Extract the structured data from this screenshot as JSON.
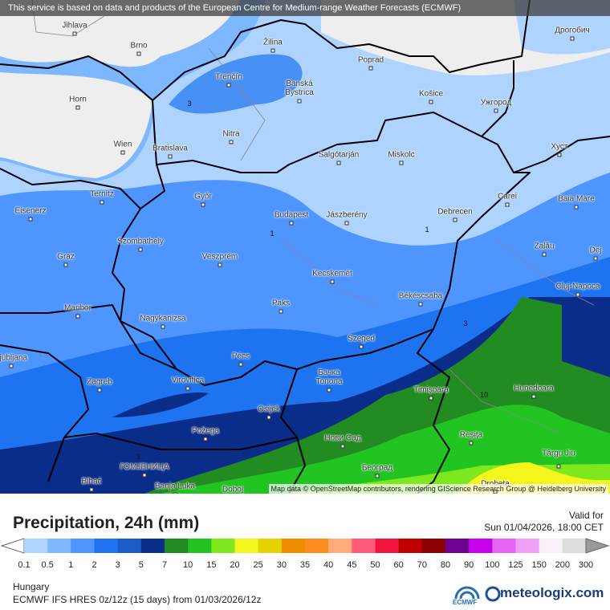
{
  "header": {
    "notice": "This service is based on data and products of the European Centre for Medium-range Weather Forecasts (ECMWF)"
  },
  "map": {
    "cities": [
      "Jihlava",
      "Brno",
      "Žilina",
      "Poprad",
      "Дрогобич",
      "Trenčín",
      "Banská Bystrica",
      "Horn",
      "Košice",
      "Ужгород",
      "Nitra",
      "Wien",
      "Bratislava",
      "Salgótarján",
      "Miskolc",
      "Хуст",
      "Ternitz",
      "Győr",
      "Carei",
      "Baia Mare",
      "Eisenerz",
      "Budapest",
      "Jászberény",
      "Debrecen",
      "Szombathely",
      "Zalău",
      "Graz",
      "Veszprém",
      "Dej",
      "Kecskemét",
      "Cluj-Napoca",
      "Maribor",
      "Paks",
      "Békéscsaba",
      "Nagykanizsa",
      "Szeged",
      "Pécs",
      "Ljubljana",
      "Zagreb",
      "Virovitica",
      "Бачка Топола",
      "Timișoara",
      "Hunedoara",
      "Osijek",
      "Požega",
      "Нови Сад",
      "Reșița",
      "Târgu Jiu",
      "ГОМЈЕНИЦА",
      "Bihać",
      "Banja Luka",
      "Doboj",
      "Београд",
      "Drobeta"
    ],
    "contour_labels": [
      "3",
      "1",
      "1",
      "3",
      "10",
      "3"
    ],
    "attribution": "Map data © OpenStreetMap contributors, rendering GIScience Research Group @ Heidelberg University"
  },
  "legend": {
    "title": "Precipitation, 24h (mm)",
    "valid_label": "Valid for",
    "valid_time": "Sun 01/04/2026, 18:00 CET",
    "scale": [
      0.1,
      0.5,
      1,
      2,
      3,
      5,
      7,
      10,
      15,
      20,
      25,
      30,
      35,
      40,
      45,
      50,
      60,
      70,
      80,
      90,
      100,
      125,
      150,
      200,
      300
    ],
    "colors": [
      "#aed3ff",
      "#7db7ff",
      "#4f95ff",
      "#1e74f0",
      "#1a5cc8",
      "#0b2d8a",
      "#228b22",
      "#22c422",
      "#7de81e",
      "#f5f51e",
      "#e6d200",
      "#f08c00",
      "#ff8c1e",
      "#ffaa78",
      "#ff5a78",
      "#f0143c",
      "#be0000",
      "#8c0000",
      "#6e0096",
      "#c800f0",
      "#e664f5",
      "#f0a0f5",
      "#faf0fa",
      "#dcdcdc"
    ]
  },
  "footer": {
    "region": "Hungary",
    "model": "ECMWF IFS HRES 0z/12z (15 days) from  01/03/2026/12z",
    "ecmwf_logo": "ECMWF",
    "brand": "meteologix.com"
  }
}
